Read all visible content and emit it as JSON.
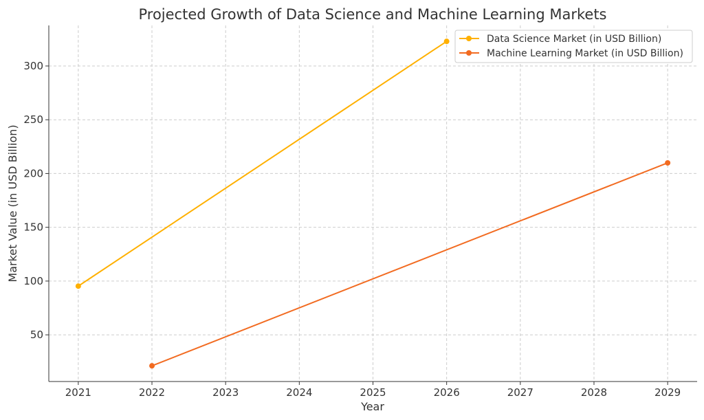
{
  "chart_data": {
    "type": "line",
    "title": "Projected Growth of Data Science and Machine Learning Markets",
    "xlabel": "Year",
    "ylabel": "Market Value (in USD Billion)",
    "xlim": [
      2020.6,
      2029.4
    ],
    "ylim": [
      6.6,
      337.7
    ],
    "xticks": [
      2021,
      2022,
      2023,
      2024,
      2025,
      2026,
      2027,
      2028,
      2029
    ],
    "yticks": [
      50,
      100,
      150,
      200,
      250,
      300
    ],
    "grid": true,
    "legend_position": "top-right",
    "series": [
      {
        "name": "Data Science Market (in USD Billion)",
        "color": "#FFB000",
        "x": [
          2021,
          2026
        ],
        "y": [
          95.3,
          322.9
        ]
      },
      {
        "name": "Machine Learning Market (in USD Billion)",
        "color": "#F26B21",
        "x": [
          2022,
          2029
        ],
        "y": [
          21.2,
          209.9
        ]
      }
    ]
  }
}
